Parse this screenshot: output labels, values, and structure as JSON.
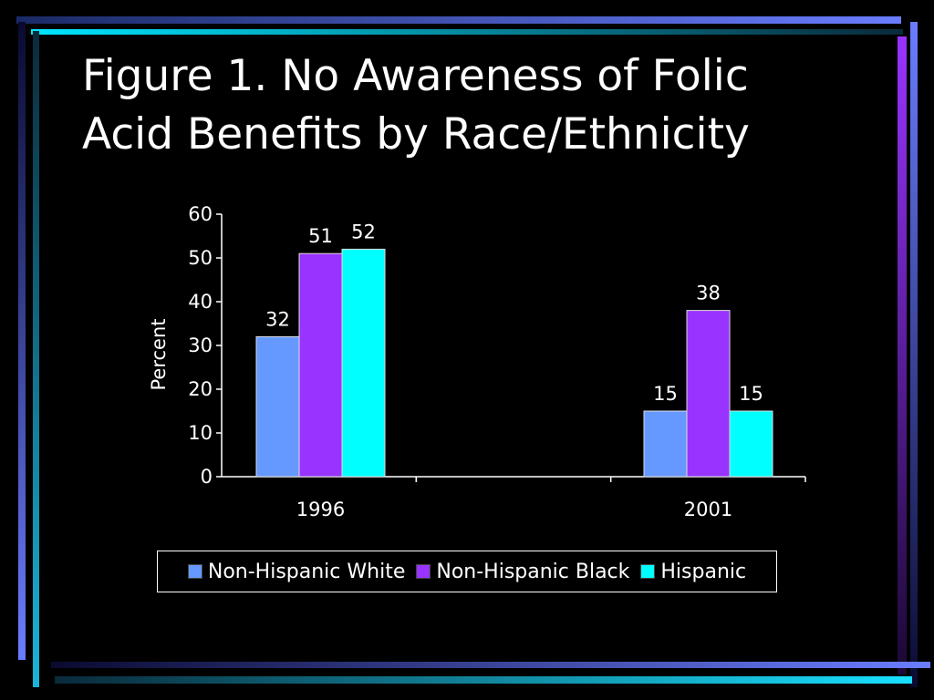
{
  "title_lines": [
    "Figure 1. No Awareness of Folic",
    "Acid Benefits by Race/Ethnicity"
  ],
  "colors": {
    "background": "#000000",
    "frame_blue": "#6666ff",
    "frame_cyan": "#00ccee",
    "frame_purple": "#9933ff",
    "text": "#ffffff"
  },
  "chart_data": {
    "type": "bar",
    "categories": [
      "1996",
      "2001"
    ],
    "series": [
      {
        "name": "Non-Hispanic White",
        "values": [
          32,
          15
        ],
        "color": "#6699ff"
      },
      {
        "name": "Non-Hispanic Black",
        "values": [
          51,
          38
        ],
        "color": "#9933ff"
      },
      {
        "name": "Hispanic",
        "values": [
          52,
          15
        ],
        "color": "#00ffff"
      }
    ],
    "ylabel": "Percent",
    "ylim": [
      0,
      60
    ],
    "yticks": [
      0,
      10,
      20,
      30,
      40,
      50,
      60
    ],
    "grid": false,
    "legend": "bottom",
    "data_labels": true
  }
}
